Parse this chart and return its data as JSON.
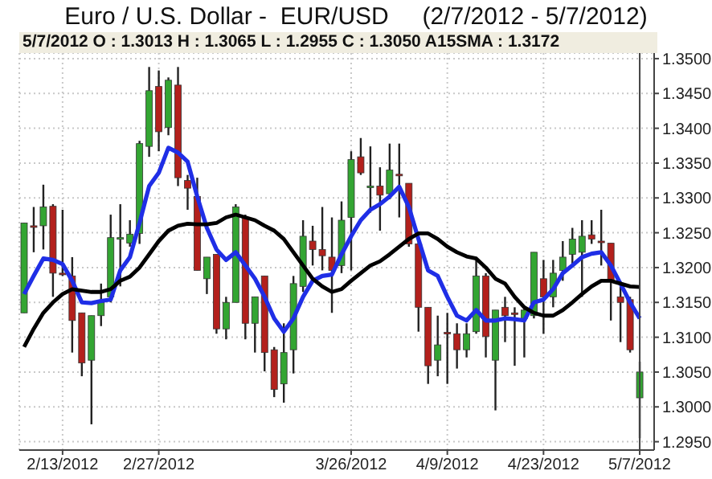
{
  "chart_data": {
    "type": "candlestick",
    "title": "Euro / U.S. Dollar -  EUR/USD     (2/7/2012 - 5/7/2012)",
    "subtitle": "5/7/2012 O : 1.3013 H : 1.3065 L : 1.2955 C : 1.3050 A15SMA : 1.3172",
    "categories": [
      null,
      null,
      null,
      null,
      "2/13/2012",
      null,
      null,
      null,
      null,
      null,
      null,
      null,
      null,
      null,
      "2/27/2012",
      null,
      null,
      null,
      null,
      null,
      null,
      null,
      null,
      null,
      null,
      null,
      null,
      null,
      null,
      null,
      null,
      null,
      null,
      null,
      "3/26/2012",
      null,
      null,
      null,
      null,
      null,
      null,
      null,
      null,
      null,
      "4/9/2012",
      null,
      null,
      null,
      null,
      null,
      null,
      null,
      null,
      null,
      "4/23/2012",
      null,
      null,
      null,
      null,
      null,
      null,
      null,
      null,
      null,
      "5/7/2012"
    ],
    "ohlc": [
      [
        1.3135,
        1.3264,
        1.3135,
        1.3264
      ],
      [
        1.326,
        1.3287,
        1.3222,
        1.3258
      ],
      [
        1.326,
        1.3319,
        1.3226,
        1.3287
      ],
      [
        1.3288,
        1.3291,
        1.3158,
        1.3192
      ],
      [
        1.3192,
        1.3283,
        1.3188,
        1.319
      ],
      [
        1.3188,
        1.3215,
        1.3078,
        1.3124
      ],
      [
        1.3135,
        1.3135,
        1.3044,
        1.3063
      ],
      [
        1.3067,
        1.3131,
        1.2975,
        1.3131
      ],
      [
        1.3131,
        1.3177,
        1.3116,
        1.315
      ],
      [
        1.3158,
        1.3276,
        1.315,
        1.3243
      ],
      [
        1.3241,
        1.3291,
        1.3173,
        1.3243
      ],
      [
        1.3235,
        1.3268,
        1.323,
        1.3248
      ],
      [
        1.3249,
        1.3382,
        1.3234,
        1.3378
      ],
      [
        1.3374,
        1.3488,
        1.3359,
        1.3454
      ],
      [
        1.346,
        1.3483,
        1.3367,
        1.3395
      ],
      [
        1.3401,
        1.3473,
        1.339,
        1.3469
      ],
      [
        1.3462,
        1.3488,
        1.3317,
        1.3329
      ],
      [
        1.3325,
        1.3333,
        1.3283,
        1.3314
      ],
      [
        1.3302,
        1.3329,
        1.3196,
        1.3196
      ],
      [
        1.3184,
        1.3215,
        1.3162,
        1.3215
      ],
      [
        1.3219,
        1.3219,
        1.3105,
        1.3112
      ],
      [
        1.3112,
        1.3158,
        1.3097,
        1.315
      ],
      [
        1.315,
        1.3291,
        1.315,
        1.3287
      ],
      [
        1.3272,
        1.3276,
        1.3097,
        1.312
      ],
      [
        1.312,
        1.3158,
        1.3078,
        1.3158
      ],
      [
        1.3188,
        1.3188,
        1.3051,
        1.3078
      ],
      [
        1.3082,
        1.3086,
        1.3014,
        1.3025
      ],
      [
        1.3033,
        1.312,
        1.3006,
        1.3078
      ],
      [
        1.3082,
        1.3188,
        1.3048,
        1.3177
      ],
      [
        1.3173,
        1.3268,
        1.3165,
        1.3245
      ],
      [
        1.3238,
        1.326,
        1.3203,
        1.3226
      ],
      [
        1.3226,
        1.3287,
        1.3196,
        1.3217
      ],
      [
        1.3215,
        1.3272,
        1.3135,
        1.3196
      ],
      [
        1.3203,
        1.3295,
        1.3192,
        1.3268
      ],
      [
        1.3272,
        1.3367,
        1.3196,
        1.3355
      ],
      [
        1.3359,
        1.3386,
        1.3333,
        1.3336
      ],
      [
        1.3315,
        1.3374,
        1.3279,
        1.3317
      ],
      [
        1.3317,
        1.3344,
        1.3253,
        1.3304
      ],
      [
        1.3306,
        1.3378,
        1.3298,
        1.334
      ],
      [
        1.3334,
        1.3378,
        1.3272,
        1.3332
      ],
      [
        1.3321,
        1.3321,
        1.323,
        1.3234
      ],
      [
        1.3234,
        1.3245,
        1.3108,
        1.3143
      ],
      [
        1.3143,
        1.3143,
        1.3033,
        1.3059
      ],
      [
        1.3067,
        1.3131,
        1.3044,
        1.3089
      ],
      [
        1.3107,
        1.3135,
        1.3033,
        1.3106
      ],
      [
        1.3105,
        1.312,
        1.3055,
        1.3082
      ],
      [
        1.3082,
        1.312,
        1.3071,
        1.3105
      ],
      [
        1.3108,
        1.3215,
        1.3105,
        1.3188
      ],
      [
        1.3188,
        1.3192,
        1.3071,
        1.3101
      ],
      [
        1.3067,
        1.3139,
        1.2995,
        1.3139
      ],
      [
        1.3143,
        1.3158,
        1.3093,
        1.3131
      ],
      [
        1.3135,
        1.3143,
        1.3059,
        1.3134
      ],
      [
        1.3127,
        1.3143,
        1.3071,
        1.3139
      ],
      [
        1.3131,
        1.3222,
        1.3127,
        1.3222
      ],
      [
        1.3184,
        1.3211,
        1.3105,
        1.3158
      ],
      [
        1.3158,
        1.3211,
        1.3143,
        1.3192
      ],
      [
        1.3196,
        1.3238,
        1.3181,
        1.3215
      ],
      [
        1.3219,
        1.3257,
        1.32,
        1.3241
      ],
      [
        1.3222,
        1.3268,
        1.3158,
        1.3245
      ],
      [
        1.3247,
        1.3268,
        1.3234,
        1.3241
      ],
      [
        1.3238,
        1.3283,
        1.3203,
        1.3237
      ],
      [
        1.3235,
        1.3235,
        1.3124,
        1.3181
      ],
      [
        1.3158,
        1.3173,
        1.3093,
        1.315
      ],
      [
        1.3154,
        1.3158,
        1.3078,
        1.3082
      ],
      [
        1.3013,
        1.3065,
        1.2955,
        1.305
      ]
    ],
    "colors": [
      "#33a532",
      "#b3201c",
      "#33a532",
      "#b3201c",
      "#b3201c",
      "#b3201c",
      "#b3201c",
      "#33a532",
      "#33a532",
      "#33a532",
      "#33a532",
      "#33a532",
      "#33a532",
      "#33a532",
      "#b3201c",
      "#33a532",
      "#b3201c",
      "#b3201c",
      "#b3201c",
      "#33a532",
      "#b3201c",
      "#33a532",
      "#33a532",
      "#b3201c",
      "#33a532",
      "#b3201c",
      "#b3201c",
      "#33a532",
      "#33a532",
      "#33a532",
      "#b3201c",
      "#b3201c",
      "#b3201c",
      "#33a532",
      "#33a532",
      "#b3201c",
      "#33a532",
      "#b3201c",
      "#33a532",
      "#b3201c",
      "#b3201c",
      "#b3201c",
      "#b3201c",
      "#33a532",
      "#b3201c",
      "#b3201c",
      "#33a532",
      "#33a532",
      "#b3201c",
      "#33a532",
      "#b3201c",
      "#b3201c",
      "#33a532",
      "#33a532",
      "#b3201c",
      "#33a532",
      "#33a532",
      "#33a532",
      "#33a532",
      "#b3201c",
      "#b3201c",
      "#b3201c",
      "#b3201c",
      "#b3201c",
      "#33a532"
    ],
    "series": [
      {
        "type": "line",
        "color": "#1f2ee6",
        "values": [
          1.3162,
          1.3188,
          1.3213,
          1.3211,
          1.3205,
          1.3181,
          1.315,
          1.3149,
          1.3152,
          1.3154,
          1.3196,
          1.3215,
          1.3264,
          1.3317,
          1.3336,
          1.3372,
          1.3365,
          1.3352,
          1.3302,
          1.3257,
          1.3226,
          1.3211,
          1.3222,
          1.3203,
          1.3184,
          1.3158,
          1.3127,
          1.3108,
          1.3127,
          1.3158,
          1.3181,
          1.3188,
          1.319,
          1.3219,
          1.3245,
          1.3268,
          1.3283,
          1.3291,
          1.3302,
          1.3316,
          1.3287,
          1.3241,
          1.3196,
          1.3188,
          1.3158,
          1.3131,
          1.3124,
          1.3139,
          1.3124,
          1.3124,
          1.3127,
          1.3126,
          1.3124,
          1.315,
          1.3154,
          1.3169,
          1.3192,
          1.3203,
          1.3215,
          1.322,
          1.3222,
          1.3203,
          1.3177,
          1.315,
          1.3127
        ]
      },
      {
        "type": "line",
        "color": "#000000",
        "values": [
          1.3086,
          1.3112,
          1.3135,
          1.315,
          1.3162,
          1.3169,
          1.3167,
          1.3165,
          1.3165,
          1.3169,
          1.3181,
          1.3187,
          1.32,
          1.3219,
          1.3238,
          1.3253,
          1.326,
          1.3263,
          1.3262,
          1.3262,
          1.3264,
          1.3272,
          1.3276,
          1.3272,
          1.3268,
          1.326,
          1.3253,
          1.3241,
          1.3222,
          1.3203,
          1.3184,
          1.3173,
          1.3165,
          1.3169,
          1.3181,
          1.3192,
          1.3203,
          1.3209,
          1.3219,
          1.323,
          1.3241,
          1.3249,
          1.3249,
          1.3241,
          1.323,
          1.3222,
          1.3216,
          1.3213,
          1.32,
          1.3184,
          1.3177,
          1.3158,
          1.3143,
          1.3135,
          1.3131,
          1.3131,
          1.3139,
          1.315,
          1.3162,
          1.3173,
          1.3181,
          1.3181,
          1.3177,
          1.3173,
          1.3172
        ]
      }
    ],
    "ylim": [
      1.2938,
      1.3508
    ],
    "yticks": [
      {
        "value": 1.295,
        "label": "1.2950"
      },
      {
        "value": 1.3,
        "label": "1.3000"
      },
      {
        "value": 1.305,
        "label": "1.3050"
      },
      {
        "value": 1.31,
        "label": "1.3100"
      },
      {
        "value": 1.315,
        "label": "1.3150"
      },
      {
        "value": 1.32,
        "label": "1.3200"
      },
      {
        "value": 1.325,
        "label": "1.3250"
      },
      {
        "value": 1.33,
        "label": "1.3300"
      },
      {
        "value": 1.335,
        "label": "1.3350"
      },
      {
        "value": 1.34,
        "label": "1.3400"
      },
      {
        "value": 1.345,
        "label": "1.3450"
      },
      {
        "value": 1.35,
        "label": "1.3500"
      }
    ],
    "ref_lines": [
      {
        "axis": "x",
        "value": "5/7/2012",
        "color": "#444444"
      }
    ],
    "grid": true
  }
}
